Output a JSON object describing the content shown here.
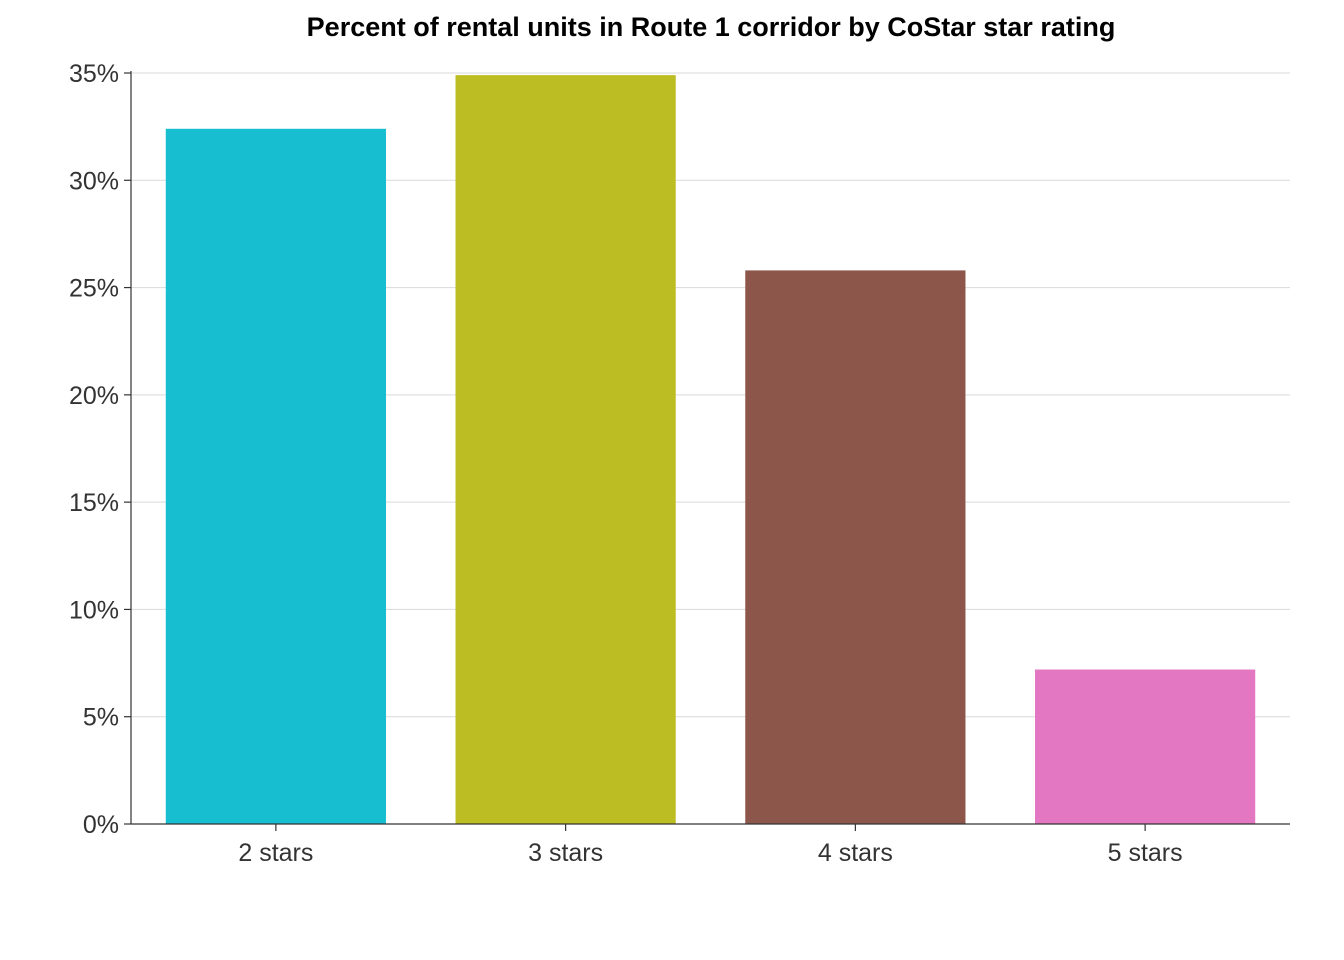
{
  "chart_data": {
    "type": "bar",
    "title": "Percent of rental units in Route 1 corridor by CoStar star rating",
    "xlabel": "",
    "ylabel": "",
    "categories": [
      "2 stars",
      "3 stars",
      "4 stars",
      "5 stars"
    ],
    "values": [
      32.4,
      34.9,
      25.8,
      7.2
    ],
    "bar_colors": [
      "#17becf",
      "#bcbd22",
      "#8c564b",
      "#e377c2"
    ],
    "ylim": [
      0,
      35
    ],
    "yticks": [
      0,
      5,
      10,
      15,
      20,
      25,
      30,
      35
    ],
    "ytick_labels": [
      "0%",
      "5%",
      "10%",
      "15%",
      "20%",
      "25%",
      "30%",
      "35%"
    ],
    "grid": "horizontal",
    "legend": "none"
  }
}
